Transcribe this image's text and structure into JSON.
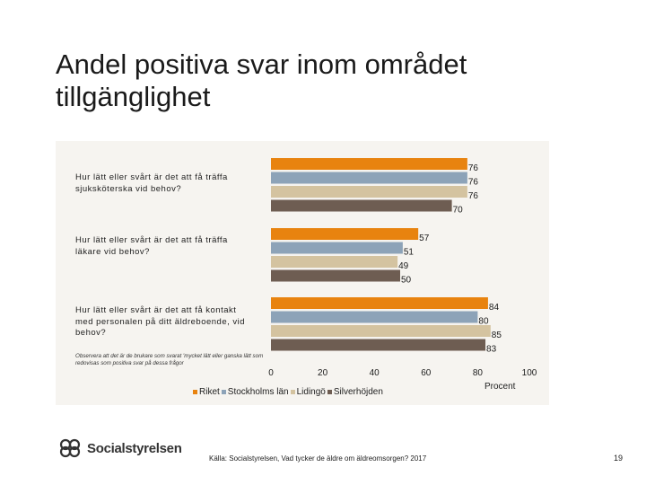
{
  "title": "Andel positiva svar inom området tillgänglighet",
  "chart_data": {
    "type": "bar",
    "orientation": "horizontal",
    "categories": [
      "Hur lätt eller svårt är det att få träffa sjuksköterska vid behov?",
      "Hur lätt eller svårt är det att få träffa läkare vid behov?",
      "Hur lätt eller svårt är det att få kontakt med personalen på ditt äldreboende, vid behov?"
    ],
    "series": [
      {
        "name": "Riket",
        "color": "#e8830f",
        "values": [
          76,
          57,
          84
        ]
      },
      {
        "name": "Stockholms län",
        "color": "#8da3b8",
        "values": [
          76,
          51,
          80
        ]
      },
      {
        "name": "Lidingö",
        "color": "#d4c3a0",
        "values": [
          76,
          49,
          85
        ]
      },
      {
        "name": "Silverhöjden",
        "color": "#6e5d52",
        "values": [
          70,
          50,
          83
        ]
      }
    ],
    "xlim": [
      0,
      100
    ],
    "xticks": [
      0,
      20,
      40,
      60,
      80,
      100
    ],
    "xlabel": "Procent"
  },
  "note": "Observera att det är de brukare som svarat 'mycket lätt eller ganska lätt som redovisas som positiva svar på dessa frågor",
  "footer": {
    "logo": "Socialstyrelsen",
    "source": "Källa: Socialstyrelsen, Vad tycker de äldre om äldreomsorgen? 2017",
    "page": "19"
  }
}
